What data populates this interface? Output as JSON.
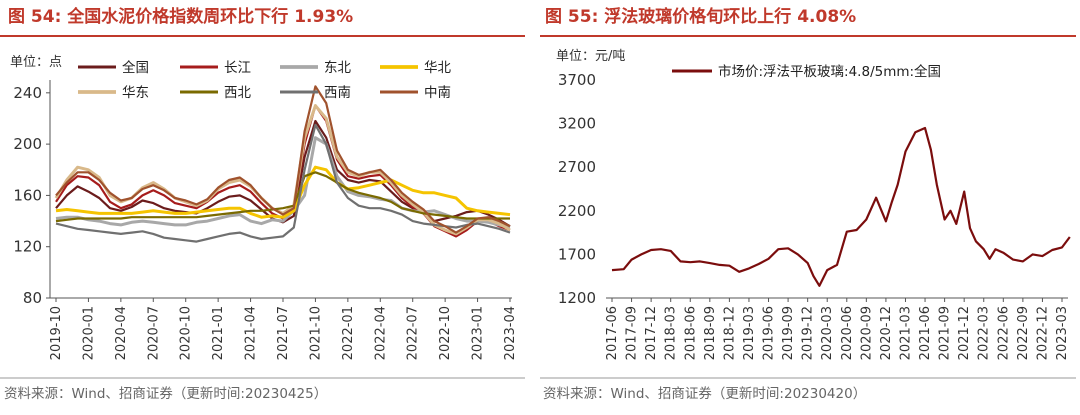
{
  "chart_data": [
    {
      "type": "line",
      "title": "图 54:  全国水泥价格指数周环比下行 1.93%",
      "unit_label": "单位：点",
      "ylim": [
        80,
        250
      ],
      "yticks": [
        "80",
        "120",
        "160",
        "200",
        "240"
      ],
      "x_ticks": [
        "2019-10",
        "2020-01",
        "2020-04",
        "2020-07",
        "2020-10",
        "2021-01",
        "2021-04",
        "2021-07",
        "2021-10",
        "2022-01",
        "2022-04",
        "2022-07",
        "2022-10",
        "2023-01",
        "2023-04"
      ],
      "legend_rows": [
        [
          "全国",
          "长江",
          "东北",
          "华北"
        ],
        [
          "华东",
          "西北",
          "西南",
          "中南"
        ]
      ],
      "grid": false,
      "legend_position": "top",
      "series": [
        {
          "name": "全国",
          "color": "#6b1c1c",
          "width": 2.2,
          "values": [
            150,
            160,
            167,
            163,
            158,
            150,
            148,
            151,
            156,
            154,
            150,
            148,
            147,
            146,
            150,
            155,
            159,
            160,
            156,
            149,
            142,
            139,
            144,
            190,
            218,
            205,
            180,
            172,
            170,
            172,
            171,
            163,
            155,
            150,
            146,
            140,
            142,
            144,
            147,
            148,
            145,
            141,
            136
          ]
        },
        {
          "name": "长江",
          "color": "#a61c1c",
          "width": 2.2,
          "values": [
            155,
            168,
            175,
            174,
            168,
            155,
            150,
            153,
            160,
            164,
            160,
            154,
            152,
            150,
            155,
            162,
            166,
            168,
            163,
            154,
            146,
            142,
            148,
            200,
            230,
            218,
            188,
            175,
            173,
            175,
            176,
            168,
            158,
            151,
            146,
            136,
            132,
            128,
            133,
            140,
            140,
            136,
            133
          ]
        },
        {
          "name": "东北",
          "color": "#a8a8a8",
          "width": 3.0,
          "values": [
            142,
            143,
            143,
            141,
            140,
            138,
            137,
            139,
            140,
            139,
            138,
            137,
            137,
            139,
            140,
            142,
            144,
            145,
            140,
            138,
            141,
            140,
            148,
            160,
            205,
            200,
            175,
            163,
            160,
            159,
            157,
            156,
            150,
            148,
            147,
            148,
            145,
            142,
            140,
            140,
            139,
            137,
            135
          ]
        },
        {
          "name": "华北",
          "color": "#f5c400",
          "width": 3.0,
          "values": [
            148,
            149,
            148,
            147,
            146,
            146,
            146,
            146,
            147,
            148,
            147,
            146,
            146,
            147,
            148,
            149,
            150,
            150,
            146,
            143,
            144,
            143,
            148,
            168,
            182,
            180,
            170,
            165,
            166,
            168,
            170,
            172,
            168,
            164,
            162,
            162,
            160,
            158,
            150,
            148,
            147,
            146,
            145
          ]
        },
        {
          "name": "华东",
          "color": "#d9b98a",
          "width": 3.0,
          "values": [
            158,
            172,
            182,
            180,
            174,
            160,
            155,
            158,
            166,
            170,
            165,
            158,
            155,
            152,
            156,
            165,
            170,
            172,
            167,
            158,
            150,
            146,
            152,
            205,
            230,
            220,
            190,
            178,
            175,
            178,
            178,
            170,
            160,
            153,
            147,
            137,
            133,
            130,
            135,
            141,
            141,
            138,
            133
          ]
        },
        {
          "name": "西北",
          "color": "#7a6a00",
          "width": 2.2,
          "values": [
            140,
            141,
            142,
            142,
            142,
            142,
            142,
            143,
            143,
            143,
            143,
            143,
            143,
            143,
            144,
            145,
            146,
            147,
            148,
            148,
            149,
            150,
            152,
            175,
            178,
            175,
            170,
            165,
            162,
            160,
            158,
            155,
            150,
            148,
            146,
            145,
            144,
            143,
            142,
            142,
            142,
            142,
            142
          ]
        },
        {
          "name": "西南",
          "color": "#707070",
          "width": 2.2,
          "values": [
            138,
            136,
            134,
            133,
            132,
            131,
            130,
            131,
            132,
            130,
            127,
            126,
            125,
            124,
            126,
            128,
            130,
            131,
            128,
            126,
            127,
            128,
            135,
            180,
            215,
            200,
            170,
            158,
            152,
            150,
            150,
            148,
            145,
            140,
            138,
            137,
            136,
            135,
            137,
            138,
            136,
            134,
            131
          ]
        },
        {
          "name": "中南",
          "color": "#a0522d",
          "width": 2.2,
          "values": [
            160,
            170,
            178,
            178,
            172,
            162,
            156,
            158,
            165,
            168,
            164,
            158,
            156,
            153,
            157,
            166,
            172,
            174,
            168,
            158,
            150,
            145,
            150,
            210,
            245,
            232,
            195,
            180,
            176,
            178,
            180,
            172,
            162,
            155,
            149,
            140,
            136,
            131,
            136,
            142,
            143,
            140,
            136
          ]
        }
      ],
      "source": "资料来源：Wind、招商证券（更新时间:20230425）"
    },
    {
      "type": "line",
      "title": "图 55:  浮法玻璃价格旬环比上行 4.08%",
      "unit_label": "单位：元/吨",
      "ylim": [
        1200,
        3700
      ],
      "yticks": [
        "1200",
        "1700",
        "2200",
        "2700",
        "3200",
        "3700"
      ],
      "x_ticks": [
        "2017-06",
        "2017-09",
        "2017-12",
        "2018-03",
        "2018-06",
        "2018-09",
        "2018-12",
        "2019-03",
        "2019-06",
        "2019-09",
        "2019-12",
        "2020-03",
        "2020-06",
        "2020-09",
        "2020-12",
        "2021-03",
        "2021-06",
        "2021-09",
        "2021-12",
        "2022-03",
        "2022-06",
        "2022-09",
        "2022-12",
        "2023-03"
      ],
      "grid": false,
      "legend_position": "top",
      "series": [
        {
          "name": "市场价:浮法平板玻璃:4.8/5mm:全国",
          "color": "#7b0d0d",
          "width": 2.2,
          "x": [
            0,
            0.6,
            1,
            1.5,
            2,
            2.5,
            3,
            3.5,
            4,
            4.5,
            5,
            5.5,
            6,
            6.5,
            7,
            7.5,
            8,
            8.5,
            9,
            9.5,
            10,
            10.3,
            10.6,
            11,
            11.5,
            12,
            12.5,
            13,
            13.5,
            14,
            14.3,
            14.6,
            15,
            15.5,
            16,
            16.3,
            16.6,
            17,
            17.3,
            17.6,
            18,
            18.3,
            18.6,
            19,
            19.3,
            19.6,
            20,
            20.5,
            21,
            21.5,
            22,
            22.5,
            23,
            23.4
          ],
          "values": [
            1520,
            1530,
            1640,
            1700,
            1750,
            1760,
            1740,
            1620,
            1610,
            1620,
            1600,
            1580,
            1570,
            1500,
            1540,
            1590,
            1650,
            1760,
            1770,
            1700,
            1600,
            1450,
            1340,
            1520,
            1580,
            1960,
            1980,
            2100,
            2350,
            2080,
            2300,
            2500,
            2880,
            3100,
            3150,
            2900,
            2500,
            2100,
            2200,
            2050,
            2420,
            2000,
            1850,
            1760,
            1650,
            1760,
            1720,
            1640,
            1620,
            1700,
            1680,
            1750,
            1780,
            1900
          ]
        }
      ],
      "source": "资料来源：Wind、招商证券（更新时间:20230420）"
    }
  ]
}
